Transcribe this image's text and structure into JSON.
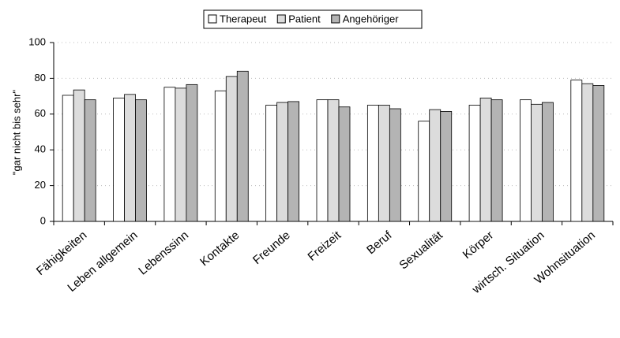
{
  "chart_data": {
    "type": "bar",
    "y_label": "\"gar nicht bis sehr\"",
    "categories": [
      "Fähigkeiten",
      "Leben allgemein",
      "Lebenssinn",
      "Kontakte",
      "Freunde",
      "Freizeit",
      "Beruf",
      "Sexualität",
      "Körper",
      "wirtsch. Situation",
      "Wohnsituation"
    ],
    "series": [
      {
        "name": "Therapeut",
        "color": "#ffffff",
        "values": [
          70.5,
          69,
          75,
          73,
          65,
          68,
          65,
          56,
          65,
          68,
          79
        ]
      },
      {
        "name": "Patient",
        "color": "#dcdcdc",
        "values": [
          73.5,
          71,
          74.5,
          81,
          66.5,
          68,
          65,
          62.5,
          69,
          65.5,
          77
        ]
      },
      {
        "name": "Angehöriger",
        "color": "#b4b4b4",
        "values": [
          68,
          68,
          76.5,
          84,
          67,
          64,
          63,
          61.5,
          68,
          66.5,
          76
        ]
      }
    ],
    "ylim": [
      0,
      100
    ],
    "yticks": [
      0,
      20,
      40,
      60,
      80,
      100
    ],
    "grid": true
  }
}
